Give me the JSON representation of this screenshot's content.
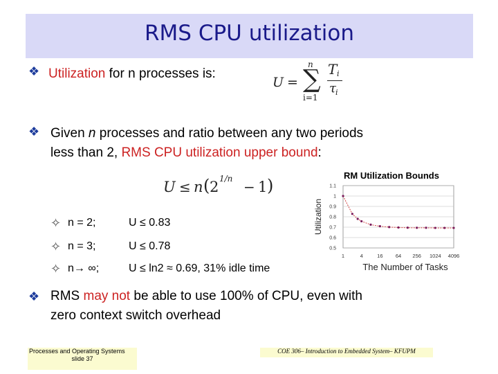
{
  "title": "RMS CPU utilization",
  "bullet1": {
    "text": "Utilization",
    "rest": " for n processes is:"
  },
  "formula1": {
    "lhs": "U",
    "op": "=",
    "sum": "∑",
    "upper": "n",
    "lower": "i=1",
    "num": "T",
    "num_sub": "i",
    "den": "τ",
    "den_sub": "i"
  },
  "bullet2": {
    "line1": "Given ",
    "line1_n": "n",
    "line1_rest": " processes and ratio between any two periods",
    "line2": "less than 2, ",
    "line2_red": "RMS CPU utilization upper bound",
    "line2_end": ":"
  },
  "formula2": {
    "lhs": "U",
    "op": "≤",
    "n": "n",
    "paren_open": "(",
    "base": "2",
    "exp": "1/n",
    "minus": "−",
    "one": "1",
    "paren_close": ")"
  },
  "cases": [
    {
      "sym": "✧",
      "left": "n = 2;",
      "right": "U ≤ 0.83"
    },
    {
      "sym": "✧",
      "left": "n = 3;",
      "right": "U ≤ 0.78"
    },
    {
      "sym": "✧",
      "left": "n→ ∞;",
      "right": "U ≤ ln2  ≈ 0.69, 31% idle time"
    }
  ],
  "bullet3": {
    "line1a": "RMS ",
    "line1_red": "may not",
    "line1b": " be able to use 100% of CPU, even with",
    "line2": "zero context switch overhead"
  },
  "footer": {
    "left1": "Processes and Operating Systems",
    "left2": "slide 37",
    "right": "COE 306– Introduction to Embedded System– KFUPM"
  },
  "chart_data": {
    "type": "line",
    "title": "RM Utilization Bounds",
    "xlabel": "The Number of Tasks",
    "ylabel": "Utilization",
    "x_tick_labels": [
      "1",
      "4",
      "16",
      "64",
      "256",
      "1024",
      "4096"
    ],
    "y_tick_labels": [
      "1.1",
      "1",
      "0.9",
      "0.8",
      "0.7",
      "0.6",
      "0.5"
    ],
    "ylim": [
      0.5,
      1.1
    ],
    "x_scale": "log",
    "series": [
      {
        "x": [
          1,
          2,
          3,
          4,
          8,
          16,
          32,
          64,
          128,
          256,
          512,
          1024,
          2048,
          4096
        ],
        "values": [
          1.0,
          0.828,
          0.78,
          0.757,
          0.724,
          0.709,
          0.701,
          0.697,
          0.695,
          0.694,
          0.694,
          0.693,
          0.693,
          0.693
        ]
      }
    ],
    "grid": true,
    "line_color": "#d04040",
    "marker_color": "#7a1a5a"
  }
}
